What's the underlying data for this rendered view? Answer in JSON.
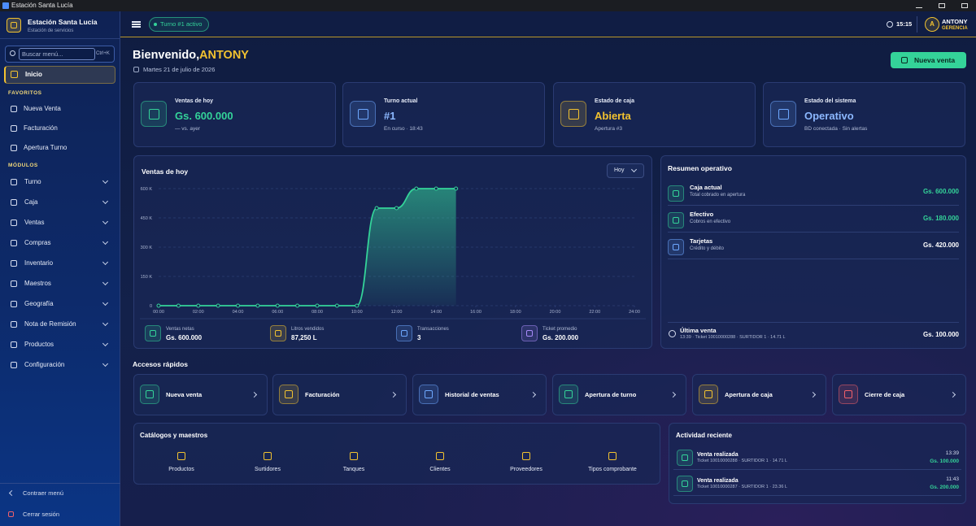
{
  "window": {
    "title": "Estación Santa Lucía"
  },
  "sidebar": {
    "brand": "Estación Santa Lucía",
    "subtitle": "Estación de servicios",
    "search_placeholder": "Buscar menú...",
    "shortcut": "Ctrl+K",
    "home": "Inicio",
    "favorites_title": "FAVORITOS",
    "favorites": [
      "Nueva Venta",
      "Facturación",
      "Apertura Turno"
    ],
    "modules_title": "MÓDULOS",
    "modules": [
      "Turno",
      "Caja",
      "Ventas",
      "Compras",
      "Inventario",
      "Maestros",
      "Geografía",
      "Nota de Remisión",
      "Productos",
      "Configuración"
    ],
    "collapse": "Contraer menú",
    "logout": "Cerrar sesión"
  },
  "topbar": {
    "shift_badge": "Turno #1 activo",
    "time": "15:15",
    "user": "ANTONY",
    "role": "GERENCIA",
    "avatar": "A"
  },
  "header": {
    "greeting": "Bienvenido,",
    "user": "ANTONY",
    "date": "Martes 21 de julio de 2026",
    "action": "Nueva venta"
  },
  "stats": [
    {
      "label": "Ventas de hoy",
      "value": "Gs. 600.000",
      "note": "— vs. ayer"
    },
    {
      "label": "Turno actual",
      "value": "#1",
      "note": "En curso · 18:43"
    },
    {
      "label": "Estado de caja",
      "value": "Abierta",
      "note": "Apertura #3"
    },
    {
      "label": "Estado del sistema",
      "value": "Operativo",
      "note": "BD conectada · Sin alertas"
    }
  ],
  "chart_data": {
    "type": "line",
    "title": "Ventas de hoy",
    "filter": "Hoy",
    "x": [
      0,
      1,
      2,
      3,
      4,
      5,
      6,
      7,
      8,
      9,
      10,
      11,
      12,
      13,
      14,
      15
    ],
    "values": [
      0,
      0,
      0,
      0,
      0,
      0,
      0,
      0,
      0,
      0,
      0,
      500000,
      500000,
      600000,
      600000,
      600000
    ],
    "color": "#34d399",
    "xlim": [
      0,
      24
    ],
    "xticks": [
      {
        "value": 0,
        "label": "00:00"
      },
      {
        "value": 2,
        "label": "02:00"
      },
      {
        "value": 4,
        "label": "04:00"
      },
      {
        "value": 6,
        "label": "06:00"
      },
      {
        "value": 8,
        "label": "08:00"
      },
      {
        "value": 10,
        "label": "10:00"
      },
      {
        "value": 12,
        "label": "12:00"
      },
      {
        "value": 14,
        "label": "14:00"
      },
      {
        "value": 16,
        "label": "16:00"
      },
      {
        "value": 18,
        "label": "18:00"
      },
      {
        "value": 20,
        "label": "20:00"
      },
      {
        "value": 22,
        "label": "22:00"
      },
      {
        "value": 24,
        "label": "24:00"
      }
    ],
    "ylim": [
      0,
      600000
    ],
    "yticks": [
      0,
      {
        "value": 150000,
        "label": "150 K"
      },
      {
        "value": 300000,
        "label": "300 K"
      },
      {
        "value": 450000,
        "label": "450 K"
      },
      {
        "value": 600000,
        "label": "600 K"
      }
    ],
    "grid": true
  },
  "sales_summary": [
    {
      "label": "Ventas netas",
      "value": "Gs. 600.000"
    },
    {
      "label": "Litros vendidos",
      "value": "87,250 L"
    },
    {
      "label": "Transacciones",
      "value": "3"
    },
    {
      "label": "Ticket promedio",
      "value": "Gs. 200.000"
    }
  ],
  "operations": {
    "title": "Resumen operativo",
    "items": [
      {
        "label": "Caja actual",
        "sub": "Total cobrado en apertura",
        "value": "Gs. 600.000"
      },
      {
        "label": "Efectivo",
        "sub": "Cobros en efectivo",
        "value": "Gs. 180.000"
      },
      {
        "label": "Tarjetas",
        "sub": "Crédito y débito",
        "value": "Gs. 420.000"
      }
    ],
    "last_sale": {
      "label": "Última venta",
      "detail": "13:39 · Ticket 10010000288 · SURTIDOR 1 · 14.71 L",
      "value": "Gs. 100.000"
    }
  },
  "quick_access": {
    "title": "Accesos rápidos",
    "items": [
      "Nueva venta",
      "Facturación",
      "Historial de ventas",
      "Apertura de turno",
      "Apertura de caja",
      "Cierre de caja"
    ]
  },
  "catalogs": {
    "title": "Catálogos y maestros",
    "items": [
      "Productos",
      "Surtidores",
      "Tanques",
      "Clientes",
      "Proveedores",
      "Tipos comprobante"
    ]
  },
  "activity": {
    "title": "Actividad reciente",
    "items": [
      {
        "title": "Venta realizada",
        "detail": "Ticket 10010000288 · SURTIDOR 1 · 14.71 L",
        "time": "13:39",
        "amount": "Gs. 100.000"
      },
      {
        "title": "Venta realizada",
        "detail": "Ticket 10010000287 · SURTIDOR 1 · 23.36 L",
        "time": "11:43",
        "amount": "Gs. 200.000"
      }
    ]
  }
}
